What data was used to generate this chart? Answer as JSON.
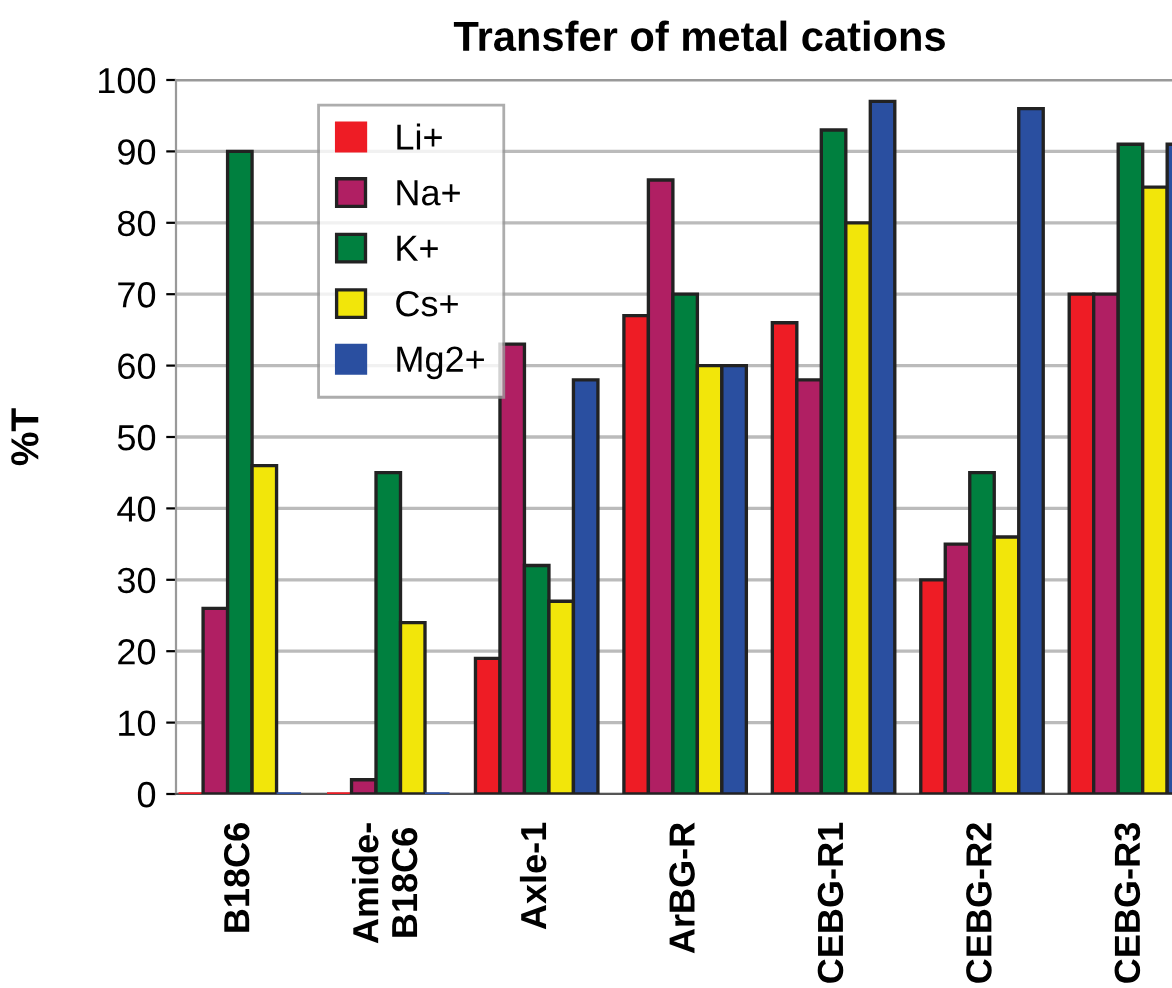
{
  "chart_data": {
    "type": "bar",
    "title": "Transfer of metal cations",
    "ylabel": "%T",
    "categories": [
      "B18C6",
      "Amide-\nB18C6",
      "Axle-1",
      "ArBG-R",
      "CEBG-R1",
      "CEBG-R2",
      "CEBG-R3"
    ],
    "series": [
      {
        "name": "Li+",
        "color": "#ee1c25",
        "values": [
          0,
          0,
          19,
          67,
          66,
          30,
          70
        ]
      },
      {
        "name": "Na+",
        "color": "#b01f63",
        "values": [
          26,
          2,
          63,
          86,
          58,
          35,
          70
        ]
      },
      {
        "name": "K+",
        "color": "#00803f",
        "values": [
          90,
          45,
          32,
          70,
          93,
          45,
          91
        ]
      },
      {
        "name": "Cs+",
        "color": "#f2e60a",
        "values": [
          46,
          24,
          27,
          60,
          80,
          36,
          85
        ]
      },
      {
        "name": "Mg2+",
        "color": "#2a4fa0",
        "values": [
          0,
          0,
          58,
          60,
          97,
          96,
          91
        ]
      }
    ],
    "ylim": [
      0,
      100
    ],
    "yticks": [
      0,
      10,
      20,
      30,
      40,
      50,
      60,
      70,
      80,
      90,
      100
    ],
    "grid": "y",
    "legend": "top left"
  }
}
